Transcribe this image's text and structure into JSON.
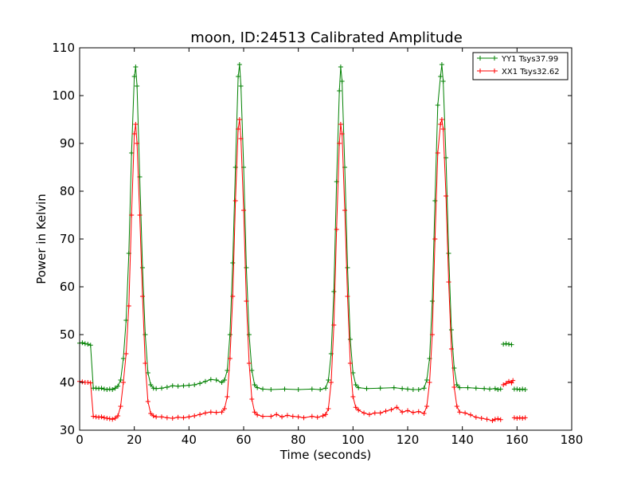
{
  "chart_data": {
    "type": "line",
    "title": "moon, ID:24513 Calibrated Amplitude",
    "xlabel": "Time (seconds)",
    "ylabel": "Power in Kelvin",
    "xlim": [
      0,
      180
    ],
    "ylim": [
      30,
      110
    ],
    "xticks": [
      0,
      20,
      40,
      60,
      80,
      100,
      120,
      140,
      160,
      180
    ],
    "yticks": [
      30,
      40,
      50,
      60,
      70,
      80,
      90,
      100,
      110
    ],
    "grid": false,
    "legend_position": "top-right",
    "series": [
      {
        "name": "YY1 Tsys37.99",
        "color": "#008000",
        "marker": "+",
        "segments": [
          [
            [
              0,
              48.2
            ],
            [
              1,
              48.3
            ],
            [
              2,
              48.1
            ],
            [
              3,
              48.0
            ],
            [
              4,
              47.8
            ],
            [
              5,
              38.8
            ],
            [
              6,
              38.8
            ],
            [
              7,
              38.7
            ],
            [
              8,
              38.8
            ],
            [
              9,
              38.6
            ],
            [
              10,
              38.5
            ],
            [
              11,
              38.6
            ],
            [
              12,
              38.5
            ],
            [
              13,
              38.8
            ],
            [
              14,
              39.2
            ],
            [
              15,
              40.5
            ],
            [
              16,
              45.0
            ],
            [
              17,
              53.0
            ],
            [
              18,
              67.0
            ],
            [
              19,
              88.0
            ],
            [
              20,
              104.0
            ],
            [
              20.5,
              106.0
            ],
            [
              21,
              102.0
            ],
            [
              22,
              83.0
            ],
            [
              23,
              64.0
            ],
            [
              24,
              50.0
            ],
            [
              25,
              42.0
            ],
            [
              26,
              39.5
            ],
            [
              27,
              38.8
            ],
            [
              28,
              38.7
            ],
            [
              30,
              38.8
            ],
            [
              32,
              39.0
            ],
            [
              34,
              39.3
            ],
            [
              36,
              39.2
            ],
            [
              38,
              39.3
            ],
            [
              40,
              39.4
            ],
            [
              42,
              39.5
            ],
            [
              44,
              39.8
            ],
            [
              46,
              40.2
            ],
            [
              48,
              40.6
            ],
            [
              50,
              40.5
            ],
            [
              52,
              40.0
            ],
            [
              53,
              40.5
            ],
            [
              54,
              42.5
            ],
            [
              55,
              50.0
            ],
            [
              56,
              65.0
            ],
            [
              57,
              85.0
            ],
            [
              58,
              104.0
            ],
            [
              58.5,
              106.5
            ],
            [
              59,
              102.0
            ],
            [
              60,
              85.0
            ],
            [
              61,
              64.0
            ],
            [
              62,
              50.0
            ],
            [
              63,
              42.5
            ],
            [
              64,
              39.5
            ],
            [
              65,
              38.9
            ],
            [
              67,
              38.6
            ],
            [
              70,
              38.5
            ],
            [
              75,
              38.6
            ],
            [
              80,
              38.5
            ],
            [
              85,
              38.6
            ],
            [
              88,
              38.5
            ],
            [
              90,
              38.8
            ],
            [
              91,
              40.5
            ],
            [
              92,
              46.0
            ],
            [
              93,
              59.0
            ],
            [
              94,
              82.0
            ],
            [
              95,
              101.0
            ],
            [
              95.5,
              106.0
            ],
            [
              96,
              103.0
            ],
            [
              97,
              85.0
            ],
            [
              98,
              64.0
            ],
            [
              99,
              49.0
            ],
            [
              100,
              42.0
            ],
            [
              101,
              39.5
            ],
            [
              102,
              38.9
            ],
            [
              105,
              38.7
            ],
            [
              110,
              38.8
            ],
            [
              115,
              38.9
            ],
            [
              118,
              38.7
            ],
            [
              120,
              38.6
            ],
            [
              122,
              38.5
            ],
            [
              124,
              38.5
            ],
            [
              126,
              38.8
            ],
            [
              127,
              40.5
            ],
            [
              128,
              45.0
            ],
            [
              129,
              57.0
            ],
            [
              130,
              78.0
            ],
            [
              131,
              98.0
            ],
            [
              132,
              104.0
            ],
            [
              132.5,
              106.5
            ],
            [
              133,
              103.0
            ],
            [
              134,
              87.0
            ],
            [
              135,
              67.0
            ],
            [
              136,
              51.0
            ],
            [
              137,
              43.0
            ],
            [
              138,
              39.5
            ],
            [
              139,
              38.9
            ],
            [
              142,
              38.9
            ],
            [
              145,
              38.8
            ],
            [
              148,
              38.7
            ],
            [
              150,
              38.6
            ],
            [
              152,
              38.7
            ],
            [
              153,
              38.5
            ],
            [
              154,
              38.6
            ]
          ],
          [
            [
              155,
              48.0
            ],
            [
              156,
              48.1
            ],
            [
              157,
              48.0
            ],
            [
              158,
              47.9
            ]
          ],
          [
            [
              159,
              38.6
            ],
            [
              160,
              38.6
            ],
            [
              161,
              38.5
            ],
            [
              162,
              38.6
            ],
            [
              163,
              38.5
            ]
          ]
        ]
      },
      {
        "name": "XX1 Tsys32.62",
        "color": "#ff0000",
        "marker": "+",
        "segments": [
          [
            [
              0,
              40.2
            ],
            [
              1,
              40.1
            ],
            [
              2,
              40.0
            ],
            [
              3,
              40.0
            ],
            [
              4,
              39.9
            ],
            [
              5,
              32.9
            ],
            [
              6,
              32.8
            ],
            [
              7,
              32.7
            ],
            [
              8,
              32.8
            ],
            [
              9,
              32.6
            ],
            [
              10,
              32.5
            ],
            [
              11,
              32.4
            ],
            [
              12,
              32.3
            ],
            [
              13,
              32.5
            ],
            [
              14,
              33.0
            ],
            [
              15,
              35.0
            ],
            [
              16,
              40.0
            ],
            [
              17,
              46.0
            ],
            [
              18,
              56.0
            ],
            [
              19,
              75.0
            ],
            [
              20,
              92.0
            ],
            [
              20.5,
              94.0
            ],
            [
              21,
              90.0
            ],
            [
              22,
              75.0
            ],
            [
              23,
              58.0
            ],
            [
              24,
              44.0
            ],
            [
              25,
              36.0
            ],
            [
              26,
              33.5
            ],
            [
              27,
              33.0
            ],
            [
              28,
              32.8
            ],
            [
              30,
              32.8
            ],
            [
              32,
              32.6
            ],
            [
              34,
              32.5
            ],
            [
              36,
              32.7
            ],
            [
              38,
              32.6
            ],
            [
              40,
              32.8
            ],
            [
              42,
              33.0
            ],
            [
              44,
              33.3
            ],
            [
              46,
              33.6
            ],
            [
              48,
              33.8
            ],
            [
              50,
              33.7
            ],
            [
              52,
              33.8
            ],
            [
              53,
              34.5
            ],
            [
              54,
              37.0
            ],
            [
              55,
              45.0
            ],
            [
              56,
              58.0
            ],
            [
              57,
              78.0
            ],
            [
              58,
              93.0
            ],
            [
              58.5,
              95.0
            ],
            [
              59,
              91.0
            ],
            [
              60,
              76.0
            ],
            [
              61,
              57.0
            ],
            [
              62,
              44.0
            ],
            [
              63,
              36.5
            ],
            [
              64,
              33.8
            ],
            [
              65,
              33.2
            ],
            [
              67,
              32.9
            ],
            [
              70,
              32.9
            ],
            [
              72,
              33.3
            ],
            [
              74,
              32.8
            ],
            [
              76,
              33.1
            ],
            [
              78,
              32.9
            ],
            [
              80,
              32.8
            ],
            [
              82,
              32.6
            ],
            [
              85,
              32.9
            ],
            [
              87,
              32.7
            ],
            [
              89,
              33.0
            ],
            [
              90,
              33.3
            ],
            [
              91,
              34.5
            ],
            [
              92,
              40.0
            ],
            [
              93,
              52.0
            ],
            [
              94,
              72.0
            ],
            [
              95,
              90.0
            ],
            [
              95.5,
              94.0
            ],
            [
              96,
              92.0
            ],
            [
              97,
              76.0
            ],
            [
              98,
              58.0
            ],
            [
              99,
              44.0
            ],
            [
              100,
              37.0
            ],
            [
              101,
              34.8
            ],
            [
              102,
              34.2
            ],
            [
              104,
              33.6
            ],
            [
              106,
              33.3
            ],
            [
              108,
              33.6
            ],
            [
              110,
              33.6
            ],
            [
              112,
              34.0
            ],
            [
              114,
              34.3
            ],
            [
              116,
              34.8
            ],
            [
              118,
              33.8
            ],
            [
              120,
              34.1
            ],
            [
              122,
              33.7
            ],
            [
              124,
              33.9
            ],
            [
              126,
              33.5
            ],
            [
              127,
              35.0
            ],
            [
              128,
              40.0
            ],
            [
              129,
              50.0
            ],
            [
              130,
              70.0
            ],
            [
              131,
              88.0
            ],
            [
              132,
              94.0
            ],
            [
              132.5,
              95.0
            ],
            [
              133,
              93.0
            ],
            [
              134,
              79.0
            ],
            [
              135,
              61.0
            ],
            [
              136,
              47.0
            ],
            [
              137,
              39.0
            ],
            [
              138,
              35.0
            ],
            [
              139,
              33.8
            ],
            [
              141,
              33.6
            ],
            [
              143,
              33.2
            ],
            [
              145,
              32.7
            ],
            [
              147,
              32.5
            ],
            [
              149,
              32.3
            ],
            [
              151,
              32.0
            ],
            [
              152,
              32.3
            ],
            [
              153,
              32.4
            ],
            [
              154,
              32.2
            ]
          ],
          [
            [
              155,
              39.5
            ],
            [
              156,
              39.8
            ],
            [
              157,
              40.2
            ],
            [
              158,
              39.9
            ],
            [
              158.5,
              40.4
            ]
          ],
          [
            [
              159,
              32.6
            ],
            [
              160,
              32.5
            ],
            [
              161,
              32.6
            ],
            [
              162,
              32.5
            ],
            [
              163,
              32.6
            ]
          ]
        ]
      }
    ]
  }
}
